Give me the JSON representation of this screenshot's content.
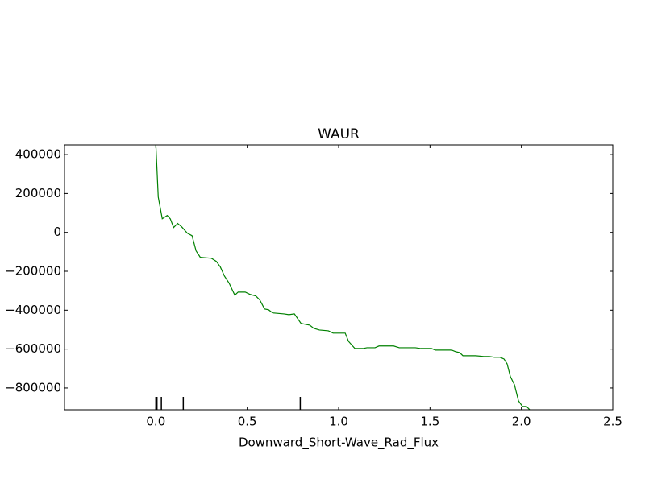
{
  "chart_data": {
    "type": "line",
    "title": "WAUR",
    "xlabel": "Downward_Short-Wave_Rad_Flux",
    "x": [
      0.0,
      0.013,
      0.035,
      0.062,
      0.079,
      0.097,
      0.119,
      0.141,
      0.172,
      0.198,
      0.22,
      0.243,
      0.304,
      0.331,
      0.353,
      0.375,
      0.401,
      0.432,
      0.45,
      0.489,
      0.516,
      0.547,
      0.569,
      0.595,
      0.617,
      0.639,
      0.701,
      0.728,
      0.758,
      0.794,
      0.842,
      0.864,
      0.895,
      0.944,
      0.97,
      1.036,
      1.054,
      1.089,
      1.133,
      1.155,
      1.199,
      1.221,
      1.301,
      1.332,
      1.42,
      1.45,
      1.508,
      1.53,
      1.618,
      1.64,
      1.662,
      1.68,
      1.75,
      1.794,
      1.825,
      1.852,
      1.883,
      1.905,
      1.922,
      1.94,
      1.962,
      1.984,
      2.006,
      2.028,
      2.046
    ],
    "series": [
      {
        "name": "WAUR",
        "color": "#008000",
        "values": [
          450000,
          182000,
          70000,
          87000,
          70000,
          25000,
          46000,
          29000,
          -4000,
          -17000,
          -95000,
          -128000,
          -133000,
          -149000,
          -178000,
          -224000,
          -261000,
          -323000,
          -307000,
          -307000,
          -319000,
          -327000,
          -348000,
          -394000,
          -398000,
          -414000,
          -419000,
          -423000,
          -419000,
          -468000,
          -477000,
          -493000,
          -502000,
          -506000,
          -518000,
          -518000,
          -560000,
          -597000,
          -597000,
          -593000,
          -593000,
          -584000,
          -584000,
          -593000,
          -593000,
          -597000,
          -597000,
          -605000,
          -605000,
          -613000,
          -618000,
          -634000,
          -634000,
          -638000,
          -638000,
          -642000,
          -642000,
          -651000,
          -676000,
          -742000,
          -783000,
          -866000,
          -895000,
          -895000,
          -912000
        ]
      }
    ],
    "rug": [
      0.0,
      0.003,
      0.006,
      0.03,
      0.15,
      0.79
    ],
    "xlim": [
      -0.5,
      2.5
    ],
    "xticks": [
      {
        "value": 0,
        "label": "0.0"
      },
      0.5,
      {
        "value": 1,
        "label": "1.0"
      },
      1.5,
      {
        "value": 2,
        "label": "2.0"
      },
      2.5
    ],
    "ylim": [
      -912000,
      450000
    ],
    "yticks": [
      {
        "value": -800000,
        "label": "−800000"
      },
      {
        "value": -600000,
        "label": "−600000"
      },
      {
        "value": -400000,
        "label": "−400000"
      },
      {
        "value": -200000,
        "label": "−200000"
      },
      0,
      200000,
      400000
    ]
  }
}
